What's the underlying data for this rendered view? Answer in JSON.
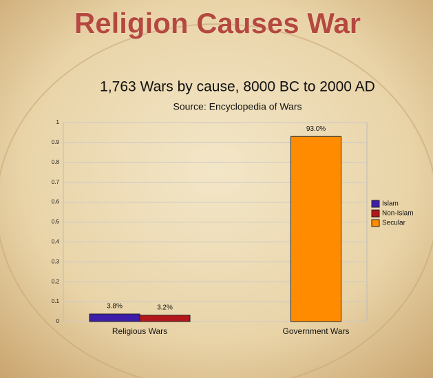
{
  "chart_data": {
    "type": "bar",
    "headline": "Religion Causes War",
    "title": "1,763 Wars by cause, 8000 BC to 2000 AD",
    "subtitle": "Source: Encyclopedia of Wars",
    "categories": [
      "Religious Wars",
      "Government Wars"
    ],
    "series": [
      {
        "name": "Islam",
        "color": "#3c1ea8",
        "values": [
          0.038,
          null
        ],
        "value_labels": [
          "3.8%",
          null
        ]
      },
      {
        "name": "Non-Islam",
        "color": "#b3161b",
        "values": [
          0.032,
          null
        ],
        "value_labels": [
          "3.2%",
          null
        ]
      },
      {
        "name": "Secular",
        "color": "#ff8c00",
        "values": [
          null,
          0.93
        ],
        "value_labels": [
          null,
          "93.0%"
        ]
      }
    ],
    "ylim": [
      0,
      1
    ],
    "yticks": [
      0,
      0.1,
      0.2,
      0.3,
      0.4,
      0.5,
      0.6,
      0.7,
      0.8,
      0.9,
      1
    ],
    "grid": true,
    "legend": "right"
  }
}
